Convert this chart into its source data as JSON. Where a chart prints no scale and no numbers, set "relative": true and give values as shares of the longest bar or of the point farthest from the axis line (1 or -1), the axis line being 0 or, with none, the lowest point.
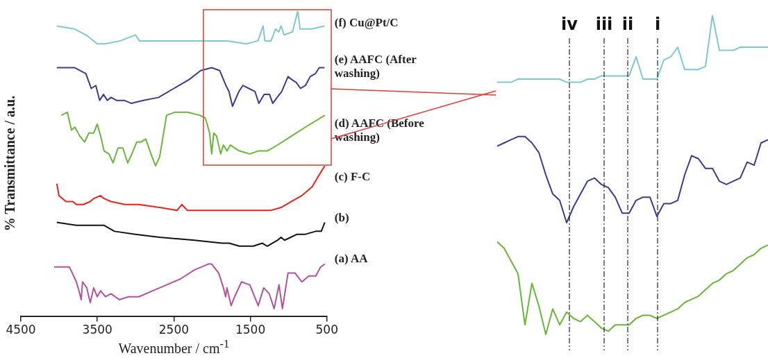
{
  "chart_data": [
    {
      "type": "line",
      "xlabel": "Wavenumber / cm$^{-1}$",
      "ylabel": "% Transmittance / a.u.",
      "relative": true,
      "xlim": [
        4500,
        500
      ],
      "xticks": [
        4500,
        3500,
        2500,
        1500,
        500
      ],
      "tick_labels": "x",
      "grid": false,
      "legend": false,
      "marker": "none",
      "series": [
        {
          "name": "(f) Cu@Pt/C",
          "color": "#7ec8cf",
          "x": [
            4030,
            3800,
            3650,
            3500,
            3400,
            3200,
            3003,
            2950,
            2700,
            2400,
            2100,
            1800,
            1550,
            1400,
            1334,
            1310,
            1230,
            1171,
            1130,
            1099,
            1060,
            950,
            881,
            850,
            700,
            530
          ],
          "values": [
            0.95,
            0.94,
            0.92,
            0.89,
            0.89,
            0.9,
            0.92,
            0.9,
            0.9,
            0.9,
            0.9,
            0.9,
            0.89,
            0.9,
            0.95,
            0.9,
            0.9,
            0.94,
            0.93,
            0.95,
            0.92,
            0.93,
            1.0,
            0.94,
            0.94,
            0.95
          ]
        },
        {
          "name": "(e) AAFC (After washing)",
          "color": "#3a3a8f",
          "x": [
            4030,
            3800,
            3650,
            3580,
            3520,
            3470,
            3420,
            3370,
            3320,
            3250,
            3150,
            3058,
            2900,
            2700,
            2500,
            2300,
            2150,
            2006,
            1900,
            1820,
            1780,
            1734,
            1650,
            1598,
            1520,
            1440,
            1389,
            1320,
            1250,
            1208,
            1150,
            1090,
            1008,
            960,
            900,
            845,
            780,
            718,
            650,
            600,
            530
          ],
          "values": [
            0.81,
            0.81,
            0.79,
            0.74,
            0.75,
            0.7,
            0.72,
            0.7,
            0.71,
            0.7,
            0.7,
            0.69,
            0.7,
            0.71,
            0.74,
            0.77,
            0.8,
            0.81,
            0.8,
            0.75,
            0.73,
            0.68,
            0.73,
            0.75,
            0.74,
            0.73,
            0.69,
            0.72,
            0.72,
            0.69,
            0.71,
            0.73,
            0.78,
            0.77,
            0.76,
            0.74,
            0.75,
            0.78,
            0.79,
            0.81,
            0.81
          ]
        },
        {
          "name": "(d) AAFC (Before washing)",
          "color": "#6ab536",
          "x": [
            3970,
            3892,
            3838,
            3793,
            3729,
            3666,
            3611,
            3548,
            3502,
            3457,
            3412,
            3348,
            3294,
            3230,
            3167,
            3103,
            3049,
            2985,
            2931,
            2867,
            2813,
            2740,
            2686,
            2595,
            2487,
            2323,
            2160,
            2087,
            2033,
            2006,
            1979,
            1942,
            1888,
            1852,
            1806,
            1761,
            1706,
            1643,
            1507,
            1398,
            1280,
            1144,
            963,
            781,
            527
          ],
          "values": [
            0.65,
            0.66,
            0.6,
            0.61,
            0.58,
            0.56,
            0.59,
            0.59,
            0.62,
            0.58,
            0.53,
            0.52,
            0.49,
            0.54,
            0.54,
            0.49,
            0.52,
            0.56,
            0.56,
            0.57,
            0.53,
            0.48,
            0.51,
            0.65,
            0.66,
            0.66,
            0.65,
            0.64,
            0.59,
            0.52,
            0.59,
            0.58,
            0.52,
            0.55,
            0.53,
            0.55,
            0.54,
            0.53,
            0.52,
            0.53,
            0.53,
            0.55,
            0.58,
            0.61,
            0.65
          ]
        },
        {
          "name": "(c) F-C",
          "color": "#e8221c",
          "x": [
            4030,
            4001,
            3910,
            3820,
            3774,
            3684,
            3593,
            3548,
            3457,
            3412,
            3321,
            3140,
            2958,
            2686,
            2459,
            2396,
            2323,
            2051,
            1598,
            1235,
            1099,
            963,
            827,
            691,
            600,
            527
          ],
          "values": [
            0.42,
            0.38,
            0.36,
            0.36,
            0.35,
            0.35,
            0.36,
            0.37,
            0.38,
            0.37,
            0.36,
            0.35,
            0.35,
            0.34,
            0.33,
            0.35,
            0.33,
            0.33,
            0.33,
            0.33,
            0.34,
            0.36,
            0.38,
            0.41,
            0.45,
            0.48
          ]
        },
        {
          "name": "(b)",
          "color": "#111111",
          "x": [
            4030,
            3774,
            3548,
            3412,
            3276,
            3003,
            2686,
            2232,
            1870,
            1779,
            1643,
            1462,
            1344,
            1280,
            1144,
            1099,
            1053,
            890,
            781,
            645,
            573,
            527
          ],
          "values": [
            0.29,
            0.28,
            0.28,
            0.28,
            0.26,
            0.25,
            0.24,
            0.23,
            0.22,
            0.22,
            0.21,
            0.21,
            0.22,
            0.21,
            0.23,
            0.24,
            0.23,
            0.25,
            0.25,
            0.26,
            0.26,
            0.29
          ]
        },
        {
          "name": "(a) AA",
          "color": "#b4509e",
          "x": [
            4065,
            3865,
            3774,
            3729,
            3711,
            3693,
            3638,
            3593,
            3548,
            3502,
            3457,
            3394,
            3321,
            3212,
            3094,
            2958,
            2777,
            2595,
            2414,
            2232,
            2051,
            2006,
            1915,
            1852,
            1824,
            1806,
            1752,
            1706,
            1616,
            1507,
            1398,
            1326,
            1253,
            1190,
            1126,
            1081,
            1008,
            918,
            827,
            736,
            645,
            582,
            527
          ],
          "values": [
            0.14,
            0.14,
            0.09,
            0.05,
            0.03,
            0.09,
            0.07,
            0.02,
            0.07,
            0.04,
            0.06,
            0.04,
            0.05,
            0.03,
            0.04,
            0.04,
            0.06,
            0.08,
            0.1,
            0.13,
            0.15,
            0.15,
            0.12,
            0.07,
            0.04,
            0.07,
            0.01,
            0.04,
            0.09,
            0.08,
            0.01,
            0.07,
            0.05,
            0.0,
            0.08,
            0.0,
            0.12,
            0.12,
            0.09,
            0.11,
            0.11,
            0.14,
            0.15
          ]
        }
      ]
    },
    {
      "type": "line",
      "relative": true,
      "tick_labels": false,
      "grid": false,
      "legend": false,
      "marker": "none",
      "categories": [
        null,
        null,
        null,
        null,
        null,
        null,
        null,
        null,
        null,
        null,
        null,
        null,
        null,
        null,
        null,
        null,
        null,
        null,
        null,
        null,
        null,
        null,
        null,
        null,
        null,
        null,
        null,
        null,
        null,
        null,
        null,
        null,
        null,
        null,
        null,
        null,
        null,
        null,
        null,
        null
      ],
      "annotations": [
        "iv",
        "iii",
        "ii",
        "i"
      ],
      "series": [
        {
          "color": "#7ec8cf",
          "values": [
            0.79,
            0.79,
            0.79,
            0.8,
            0.8,
            0.8,
            0.8,
            0.8,
            0.8,
            0.8,
            0.79,
            0.79,
            0.79,
            0.8,
            0.8,
            0.81,
            0.81,
            0.81,
            0.81,
            0.81,
            0.87,
            0.8,
            0.8,
            0.8,
            0.86,
            0.87,
            0.9,
            0.83,
            0.83,
            0.83,
            0.84,
            1.0,
            0.89,
            0.89,
            0.89,
            0.9,
            0.9,
            0.9,
            0.9,
            0.9
          ]
        },
        {
          "color": "#3a3a8f",
          "values": [
            0.59,
            0.6,
            0.61,
            0.62,
            0.62,
            0.6,
            0.57,
            0.5,
            0.44,
            0.42,
            0.35,
            0.4,
            0.44,
            0.48,
            0.49,
            0.47,
            0.46,
            0.43,
            0.38,
            0.38,
            0.42,
            0.43,
            0.43,
            0.37,
            0.41,
            0.41,
            0.42,
            0.5,
            0.56,
            0.55,
            0.52,
            0.52,
            0.48,
            0.47,
            0.48,
            0.49,
            0.54,
            0.53,
            0.6,
            0.61
          ]
        },
        {
          "color": "#6ab536",
          "values": [
            0.29,
            0.27,
            0.23,
            0.19,
            0.03,
            0.16,
            0.09,
            0.0,
            0.08,
            0.03,
            0.07,
            0.05,
            0.04,
            0.06,
            0.04,
            0.02,
            0.01,
            0.03,
            0.03,
            0.03,
            0.05,
            0.06,
            0.06,
            0.05,
            0.06,
            0.07,
            0.08,
            0.1,
            0.11,
            0.12,
            0.14,
            0.16,
            0.17,
            0.19,
            0.2,
            0.22,
            0.24,
            0.25,
            0.27,
            0.28
          ]
        }
      ]
    }
  ]
}
